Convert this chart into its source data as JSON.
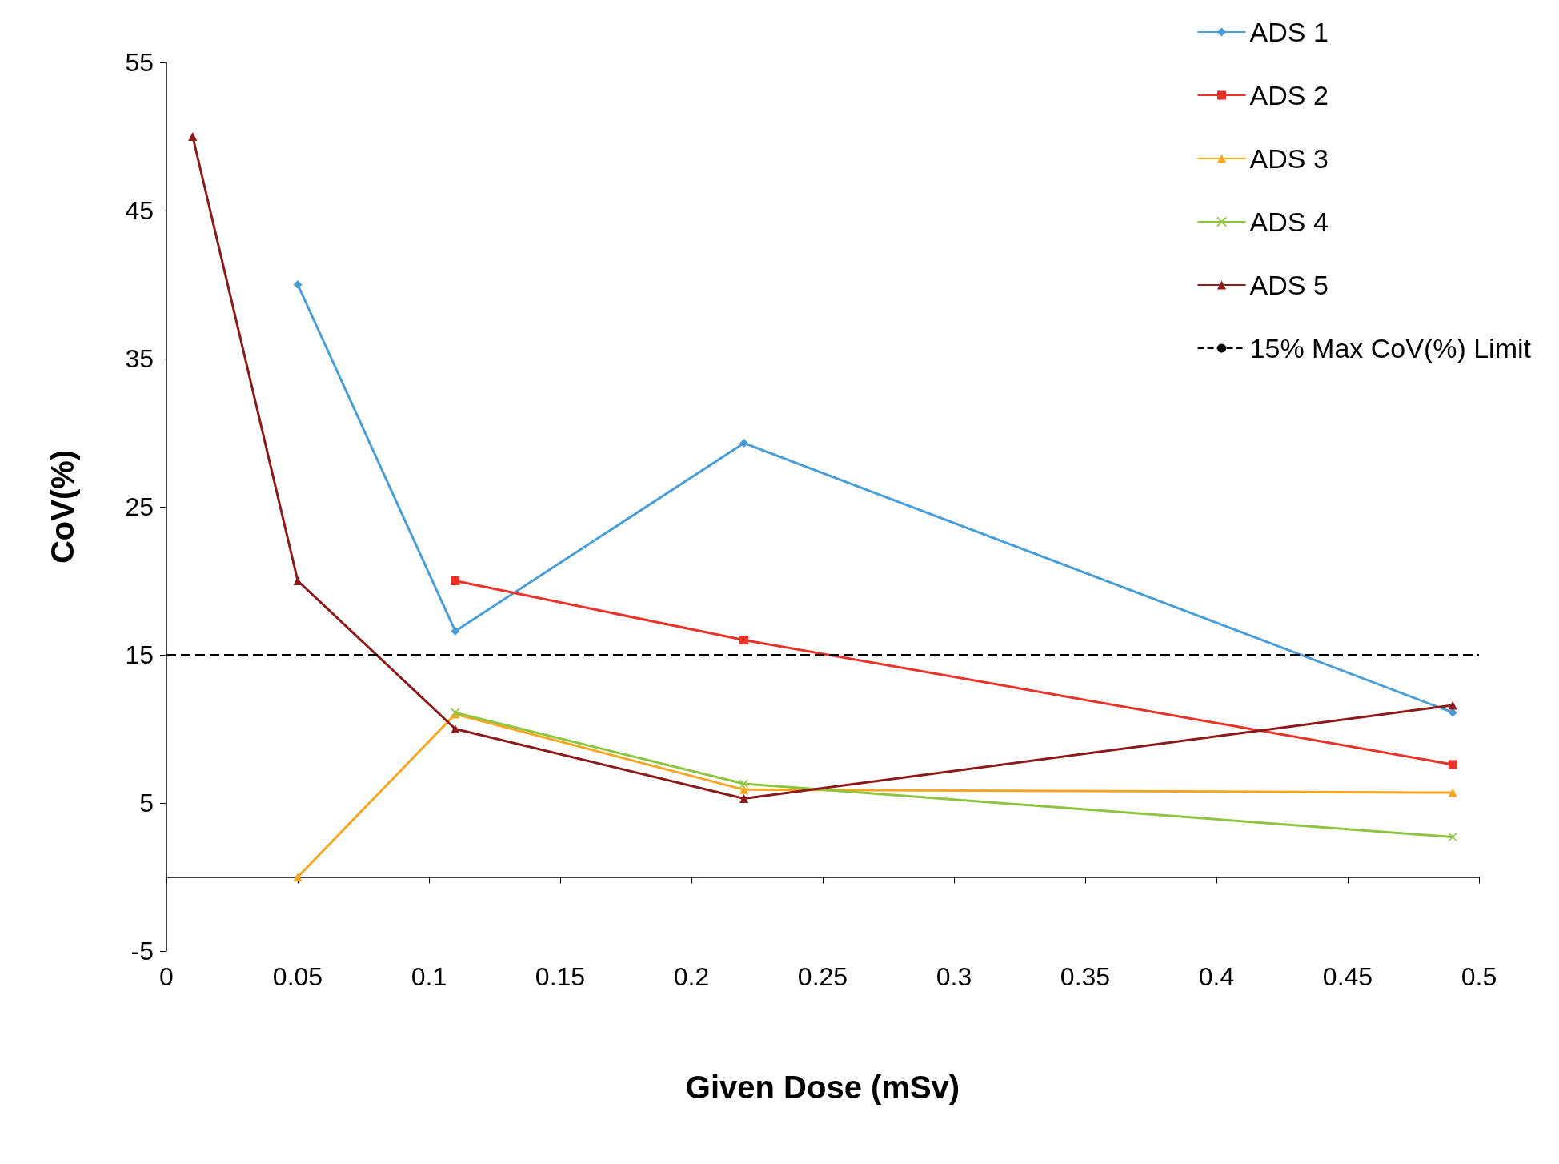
{
  "chart_data": {
    "type": "line",
    "xlabel": "Given Dose (mSv)",
    "ylabel": "CoV(%)",
    "xlim": [
      0,
      0.5
    ],
    "xticks": [
      0,
      0.05,
      0.1,
      0.15,
      0.2,
      0.25,
      0.3,
      0.35,
      0.4,
      0.45,
      0.5
    ],
    "ylim": [
      -5,
      55
    ],
    "yticks": [
      -5,
      5,
      15,
      25,
      35,
      45,
      55
    ],
    "grid": false,
    "legend": "top right",
    "line_style": "solid",
    "series": [
      {
        "name": "ADS 1",
        "color": "#4a9ed8",
        "marker": "diamond",
        "x": [
          0.05,
          0.11,
          0.22,
          0.49
        ],
        "values": [
          40,
          16.6,
          29.3,
          11.1
        ]
      },
      {
        "name": "ADS 2",
        "color": "#e8322a",
        "marker": "square",
        "x": [
          0.11,
          0.22,
          0.49
        ],
        "values": [
          20,
          16,
          7.6
        ]
      },
      {
        "name": "ADS 3",
        "color": "#f5a623",
        "marker": "triangle",
        "x": [
          0.05,
          0.11,
          0.22,
          0.49
        ],
        "values": [
          0,
          11,
          5.9,
          5.7
        ]
      },
      {
        "name": "ADS 4",
        "color": "#8cc63f",
        "marker": "cross",
        "x": [
          0.11,
          0.22,
          0.49
        ],
        "values": [
          11.1,
          6.3,
          2.7
        ]
      },
      {
        "name": "ADS 5",
        "color": "#8b1a1a",
        "marker": "triangle",
        "x": [
          0.01,
          0.05,
          0.11,
          0.22,
          0.49
        ],
        "values": [
          50,
          20,
          10,
          5.3,
          11.6
        ]
      }
    ],
    "ref_lines": [
      {
        "axis": "y",
        "value": 15,
        "label": "15% Max CoV(%) Limit",
        "color": "#000000",
        "line_style": "dashed"
      }
    ]
  }
}
